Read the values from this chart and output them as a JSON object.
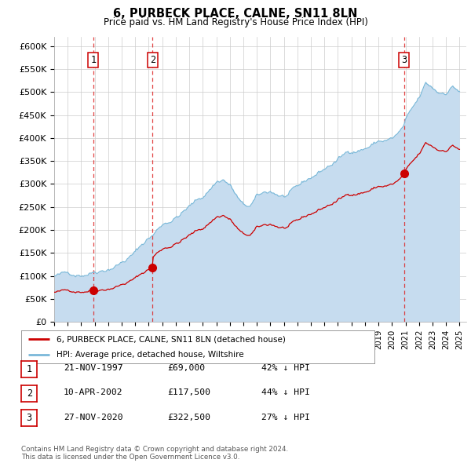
{
  "title": "6, PURBECK PLACE, CALNE, SN11 8LN",
  "subtitle": "Price paid vs. HM Land Registry's House Price Index (HPI)",
  "ylabel_ticks": [
    "£0",
    "£50K",
    "£100K",
    "£150K",
    "£200K",
    "£250K",
    "£300K",
    "£350K",
    "£400K",
    "£450K",
    "£500K",
    "£550K",
    "£600K"
  ],
  "ylim": [
    0,
    620000
  ],
  "yticks": [
    0,
    50000,
    100000,
    150000,
    200000,
    250000,
    300000,
    350000,
    400000,
    450000,
    500000,
    550000,
    600000
  ],
  "sale_dates_decimal": [
    1997.894,
    2002.274,
    2020.906
  ],
  "sale_prices": [
    69000,
    117500,
    322500
  ],
  "sale_labels": [
    "1",
    "2",
    "3"
  ],
  "hpi_color": "#7ab8d9",
  "hpi_fill_color": "#c6dcef",
  "sale_line_color": "#cc0000",
  "sale_dot_color": "#cc0000",
  "vline_color": "#dd2222",
  "legend_house_label": "6, PURBECK PLACE, CALNE, SN11 8LN (detached house)",
  "legend_hpi_label": "HPI: Average price, detached house, Wiltshire",
  "table_rows": [
    {
      "num": "1",
      "date": "21-NOV-1997",
      "price": "£69,000",
      "hpi": "42% ↓ HPI"
    },
    {
      "num": "2",
      "date": "10-APR-2002",
      "price": "£117,500",
      "hpi": "44% ↓ HPI"
    },
    {
      "num": "3",
      "date": "27-NOV-2020",
      "price": "£322,500",
      "hpi": "27% ↓ HPI"
    }
  ],
  "footnote": "Contains HM Land Registry data © Crown copyright and database right 2024.\nThis data is licensed under the Open Government Licence v3.0.",
  "background_color": "#ffffff",
  "plot_bg_color": "#ffffff",
  "grid_color": "#cccccc"
}
